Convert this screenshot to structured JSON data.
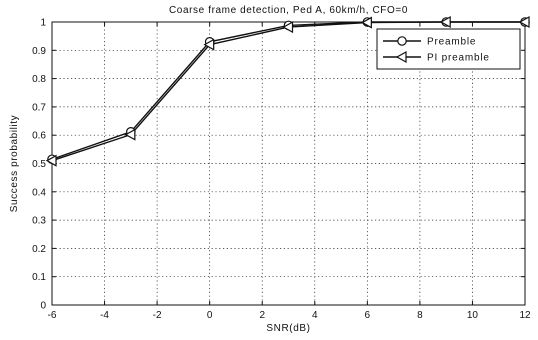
{
  "chart_data": {
    "type": "line",
    "title": "Coarse frame detection, Ped A, 60km/h, CFO=0",
    "xlabel": "SNR(dB)",
    "ylabel": "Success probability",
    "xlim": [
      -6,
      12
    ],
    "ylim": [
      0,
      1
    ],
    "grid": true,
    "legend_position": "top-right",
    "x_ticks": [
      "-6",
      "-4",
      "-2",
      "0",
      "2",
      "4",
      "6",
      "8",
      "10",
      "12"
    ],
    "y_ticks": [
      "0",
      "0.1",
      "0.2",
      "0.3",
      "0.4",
      "0.5",
      "0.6",
      "0.7",
      "0.8",
      "0.9",
      "1"
    ],
    "series": [
      {
        "name": "Preamble",
        "marker": "circle",
        "x": [
          -6,
          -3,
          0,
          3,
          6,
          9,
          12
        ],
        "values": [
          0.515,
          0.612,
          0.93,
          0.988,
          1.0,
          1.0,
          1.0
        ]
      },
      {
        "name": "PI preamble",
        "marker": "triangle-left",
        "x": [
          -6,
          -3,
          0,
          3,
          6,
          9,
          12
        ],
        "values": [
          0.51,
          0.602,
          0.92,
          0.982,
          0.998,
          1.0,
          1.0
        ]
      }
    ]
  }
}
